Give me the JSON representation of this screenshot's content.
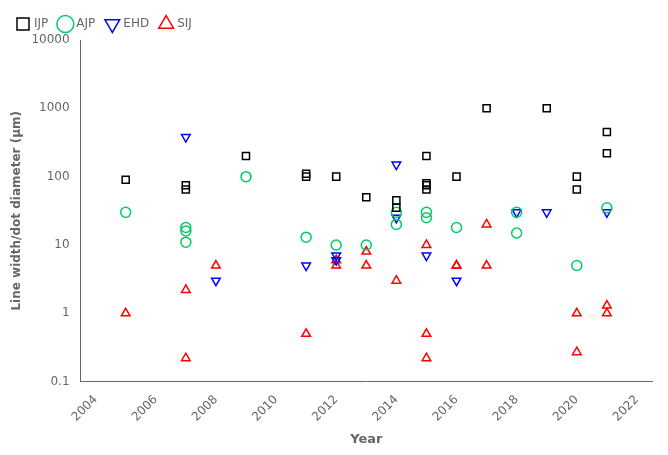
{
  "chart_data": {
    "type": "scatter",
    "xlabel": "Year",
    "ylabel": "Line width/dot diameter (μm)",
    "log": "y",
    "grid": false,
    "legend": "upper left",
    "xlim": [
      2003.5,
      2022.5
    ],
    "xticks": [
      2004,
      2006,
      2008,
      2010,
      2012,
      2014,
      2016,
      2018,
      2020,
      2022
    ],
    "ylim": [
      0.1,
      10000
    ],
    "yticks": [
      0.1,
      1,
      10,
      100,
      1000,
      10000
    ],
    "series": [
      {
        "name": "IJP",
        "color": "#000000",
        "marker": "square",
        "x": [
          2005,
          2007,
          2007,
          2009,
          2011,
          2011,
          2012,
          2013,
          2014,
          2014,
          2015,
          2015,
          2015,
          2015,
          2016,
          2017,
          2019,
          2020,
          2020,
          2021,
          2021
        ],
        "values": [
          90,
          75,
          65,
          200,
          100,
          110,
          100,
          50,
          35,
          45,
          200,
          75,
          65,
          80,
          100,
          1000,
          1000,
          100,
          65,
          220,
          450
        ]
      },
      {
        "name": "AJP",
        "color": "#00cc66",
        "marker": "circle",
        "x": [
          2005,
          2007,
          2007,
          2007,
          2009,
          2011,
          2012,
          2013,
          2014,
          2014,
          2015,
          2015,
          2016,
          2018,
          2018,
          2020,
          2021
        ],
        "values": [
          30,
          18,
          11,
          16,
          100,
          13,
          10,
          10,
          30,
          20,
          30,
          25,
          18,
          30,
          15,
          5,
          35
        ]
      },
      {
        "name": "EHD",
        "color": "#0000ff",
        "marker": "triangle_down",
        "x": [
          2007,
          2008,
          2011,
          2012,
          2012,
          2014,
          2014,
          2015,
          2016,
          2018,
          2019,
          2021
        ],
        "values": [
          380,
          3,
          5,
          7,
          6,
          25,
          150,
          7,
          3,
          30,
          30,
          30
        ]
      },
      {
        "name": "SIJ",
        "color": "#ff0000",
        "marker": "triangle_up",
        "x": [
          2005,
          2007,
          2007,
          2008,
          2011,
          2012,
          2012,
          2013,
          2013,
          2014,
          2015,
          2015,
          2015,
          2016,
          2016,
          2017,
          2017,
          2020,
          2020,
          2021,
          2021
        ],
        "values": [
          1,
          0.22,
          2.2,
          5,
          0.5,
          5,
          6,
          5,
          8,
          3,
          0.22,
          10,
          0.5,
          5,
          5,
          20,
          5,
          1,
          0.27,
          1,
          1.3
        ]
      }
    ]
  }
}
